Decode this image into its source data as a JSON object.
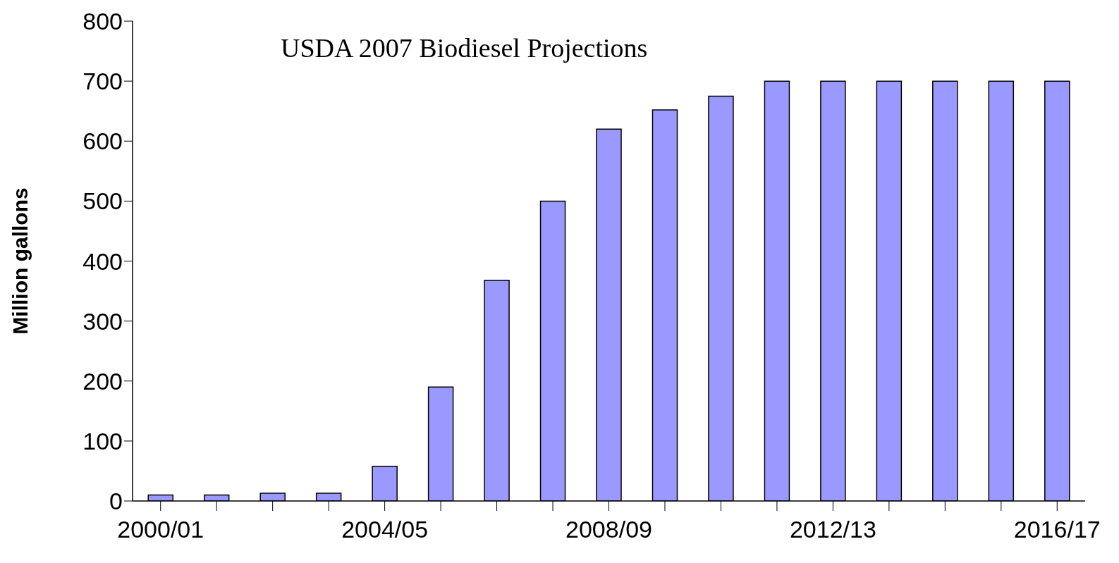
{
  "chart_data": {
    "type": "bar",
    "title": "USDA 2007 Biodiesel Projections",
    "ylabel": "Million gallons",
    "categories": [
      "2000/01",
      null,
      null,
      null,
      "2004/05",
      null,
      null,
      null,
      "2008/09",
      null,
      null,
      null,
      "2012/13",
      null,
      null,
      null,
      "2016/17"
    ],
    "values": [
      10,
      10,
      13,
      13,
      58,
      190,
      368,
      500,
      620,
      652,
      675,
      700,
      700,
      700,
      700,
      700,
      700
    ],
    "color": "#9999ff",
    "ylim": [
      0,
      800
    ],
    "yticks": [
      0,
      100,
      200,
      300,
      400,
      500,
      600,
      700,
      800
    ],
    "grid": false
  }
}
